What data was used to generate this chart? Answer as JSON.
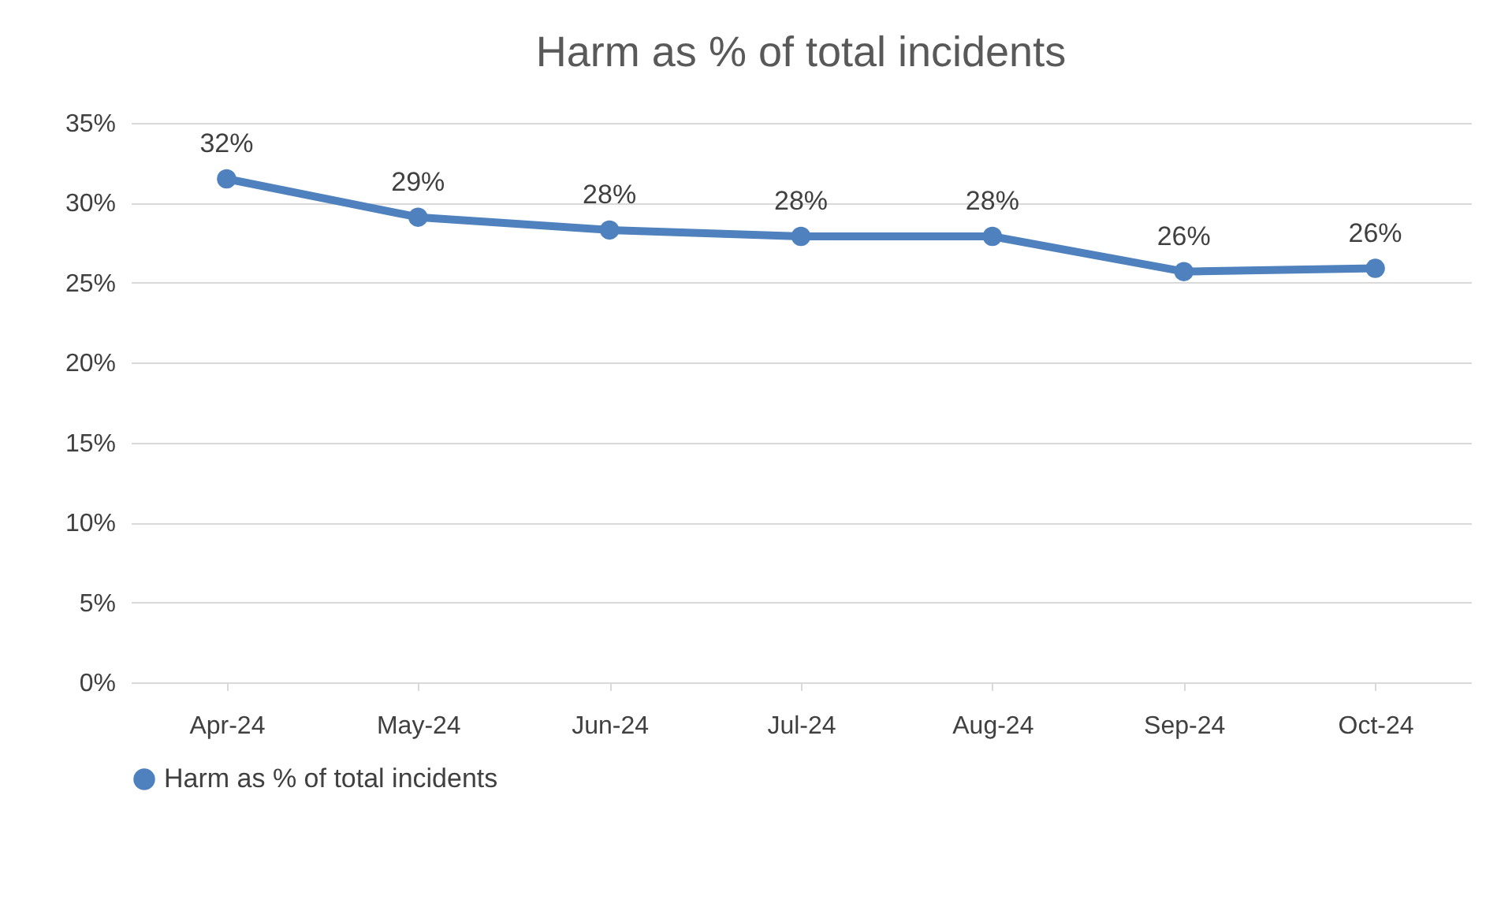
{
  "chart_data": {
    "type": "line",
    "title": "Harm as % of total incidents",
    "categories": [
      "Apr-24",
      "May-24",
      "Jun-24",
      "Jul-24",
      "Aug-24",
      "Sep-24",
      "Oct-24"
    ],
    "series": [
      {
        "name": "Harm as % of total incidents",
        "color": "#4e81bd",
        "values": [
          31.5,
          29.1,
          28.3,
          27.9,
          27.9,
          25.7,
          25.9
        ],
        "value_labels": [
          "32%",
          "29%",
          "28%",
          "28%",
          "28%",
          "26%",
          "26%"
        ]
      }
    ],
    "ylim": [
      0,
      35
    ],
    "yticks": [
      {
        "value": 0,
        "label": "0%"
      },
      {
        "value": 5,
        "label": "5%"
      },
      {
        "value": 10,
        "label": "10%"
      },
      {
        "value": 15,
        "label": "15%"
      },
      {
        "value": 20,
        "label": "20%"
      },
      {
        "value": 25,
        "label": "25%"
      },
      {
        "value": 30,
        "label": "30%"
      },
      {
        "value": 35,
        "label": "35%"
      }
    ],
    "grid": "y",
    "legend": "bottom",
    "marker": "circle",
    "line_style": "solid"
  }
}
